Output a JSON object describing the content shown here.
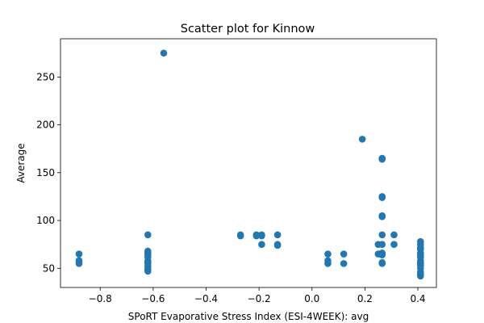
{
  "chart_data": {
    "type": "scatter",
    "title": "Scatter plot for Kinnow",
    "xlabel": "SPoRT Evaporative Stress Index (ESI-4WEEK): avg",
    "ylabel": "Average",
    "xlim": [
      -0.95,
      0.47
    ],
    "ylim": [
      30,
      290
    ],
    "xticks": [
      -0.8,
      -0.6,
      -0.4,
      -0.2,
      0.0,
      0.2,
      0.4
    ],
    "xtick_labels": [
      "−0.8",
      "−0.6",
      "−0.4",
      "−0.2",
      "0.0",
      "0.2",
      "0.4"
    ],
    "yticks": [
      50,
      100,
      150,
      200,
      250
    ],
    "ytick_labels": [
      "50",
      "100",
      "150",
      "200",
      "250"
    ],
    "grid": false,
    "marker_color": "#1f77b4",
    "points": [
      {
        "x": -0.88,
        "y": 65
      },
      {
        "x": -0.88,
        "y": 58
      },
      {
        "x": -0.88,
        "y": 55
      },
      {
        "x": -0.62,
        "y": 85
      },
      {
        "x": -0.62,
        "y": 68
      },
      {
        "x": -0.62,
        "y": 66
      },
      {
        "x": -0.62,
        "y": 64
      },
      {
        "x": -0.62,
        "y": 62
      },
      {
        "x": -0.62,
        "y": 58
      },
      {
        "x": -0.62,
        "y": 56
      },
      {
        "x": -0.62,
        "y": 55
      },
      {
        "x": -0.62,
        "y": 52
      },
      {
        "x": -0.62,
        "y": 49
      },
      {
        "x": -0.62,
        "y": 47
      },
      {
        "x": -0.56,
        "y": 275
      },
      {
        "x": -0.27,
        "y": 85
      },
      {
        "x": -0.27,
        "y": 84
      },
      {
        "x": -0.21,
        "y": 85
      },
      {
        "x": -0.21,
        "y": 84
      },
      {
        "x": -0.19,
        "y": 85
      },
      {
        "x": -0.19,
        "y": 84
      },
      {
        "x": -0.19,
        "y": 75
      },
      {
        "x": -0.13,
        "y": 85
      },
      {
        "x": -0.13,
        "y": 75
      },
      {
        "x": -0.13,
        "y": 74
      },
      {
        "x": 0.06,
        "y": 65
      },
      {
        "x": 0.06,
        "y": 58
      },
      {
        "x": 0.06,
        "y": 55
      },
      {
        "x": 0.12,
        "y": 65
      },
      {
        "x": 0.12,
        "y": 55
      },
      {
        "x": 0.19,
        "y": 185
      },
      {
        "x": 0.25,
        "y": 75
      },
      {
        "x": 0.25,
        "y": 65
      },
      {
        "x": 0.265,
        "y": 165
      },
      {
        "x": 0.265,
        "y": 164
      },
      {
        "x": 0.265,
        "y": 125
      },
      {
        "x": 0.265,
        "y": 124
      },
      {
        "x": 0.265,
        "y": 105
      },
      {
        "x": 0.265,
        "y": 104
      },
      {
        "x": 0.265,
        "y": 85
      },
      {
        "x": 0.265,
        "y": 75
      },
      {
        "x": 0.265,
        "y": 66
      },
      {
        "x": 0.265,
        "y": 64
      },
      {
        "x": 0.265,
        "y": 56
      },
      {
        "x": 0.265,
        "y": 55
      },
      {
        "x": 0.31,
        "y": 85
      },
      {
        "x": 0.31,
        "y": 75
      },
      {
        "x": 0.41,
        "y": 78
      },
      {
        "x": 0.41,
        "y": 75
      },
      {
        "x": 0.41,
        "y": 72
      },
      {
        "x": 0.41,
        "y": 70
      },
      {
        "x": 0.41,
        "y": 66
      },
      {
        "x": 0.41,
        "y": 64
      },
      {
        "x": 0.41,
        "y": 62
      },
      {
        "x": 0.41,
        "y": 58
      },
      {
        "x": 0.41,
        "y": 56
      },
      {
        "x": 0.41,
        "y": 55
      },
      {
        "x": 0.41,
        "y": 53
      },
      {
        "x": 0.41,
        "y": 50
      },
      {
        "x": 0.41,
        "y": 46
      },
      {
        "x": 0.41,
        "y": 44
      },
      {
        "x": 0.41,
        "y": 42
      }
    ]
  }
}
